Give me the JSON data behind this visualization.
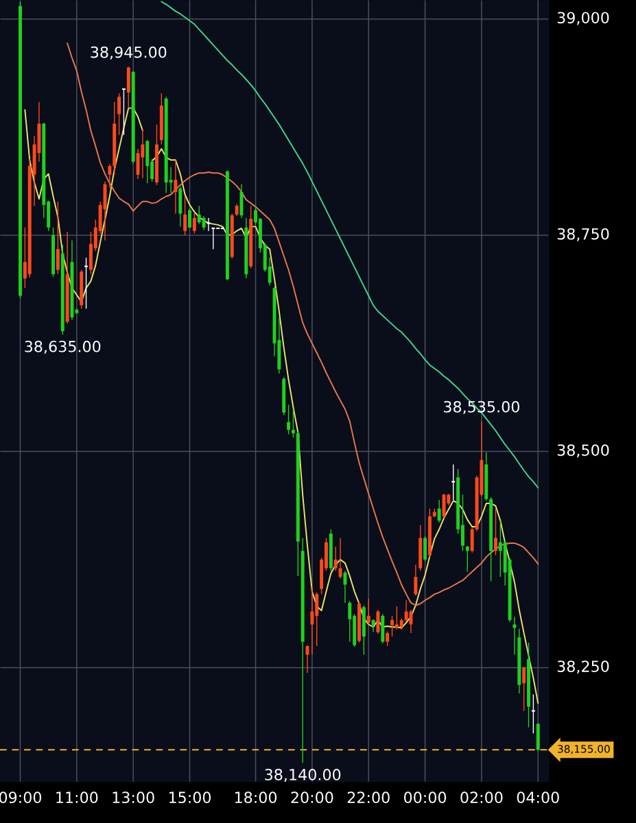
{
  "chart_data": {
    "type": "candlestick",
    "categories": [
      "09:00",
      null,
      null,
      null,
      null,
      null,
      null,
      null,
      null,
      null,
      null,
      null,
      "11:00",
      null,
      null,
      null,
      null,
      null,
      null,
      null,
      null,
      null,
      null,
      null,
      "13:00",
      null,
      null,
      null,
      null,
      null,
      null,
      null,
      null,
      null,
      null,
      null,
      "15:00",
      null,
      null,
      null,
      null,
      null,
      null,
      null,
      null,
      null,
      null,
      null,
      null,
      null,
      "18:00",
      null,
      null,
      null,
      null,
      null,
      null,
      null,
      null,
      null,
      null,
      null,
      "20:00",
      null,
      null,
      null,
      null,
      null,
      null,
      null,
      null,
      null,
      null,
      null,
      "22:00",
      null,
      null,
      null,
      null,
      null,
      null,
      null,
      null,
      null,
      null,
      null,
      "00:00",
      null,
      null,
      null,
      null,
      null,
      null,
      null,
      null,
      null,
      null,
      null,
      "02:00",
      null,
      null,
      null,
      null,
      null,
      null,
      null,
      null,
      null,
      null,
      null,
      "04:00"
    ],
    "ohlc": [
      [
        39015,
        39020,
        38677,
        38680
      ],
      [
        38700,
        38759,
        38689,
        38719
      ],
      [
        38705,
        38838,
        38701,
        38830
      ],
      [
        38820,
        38865,
        38784,
        38855
      ],
      [
        38845,
        38904,
        38835,
        38879
      ],
      [
        38879,
        38880,
        38770,
        38785
      ],
      [
        38789,
        38790,
        38755,
        38759
      ],
      [
        38750,
        38759,
        38702,
        38705
      ],
      [
        38710,
        38789,
        38705,
        38734
      ],
      [
        38729,
        38739,
        38635,
        38639
      ],
      [
        38650,
        38754,
        38648,
        38705
      ],
      [
        38719,
        38744,
        38652,
        38655
      ],
      [
        38664,
        38665,
        38659,
        38660
      ],
      [
        38669,
        38710,
        38665,
        38708
      ],
      [
        38714,
        38724,
        38665,
        38714
      ],
      [
        38710,
        38754,
        38705,
        38740
      ],
      [
        38735,
        38768,
        38732,
        38759
      ],
      [
        38755,
        38789,
        38752,
        38785
      ],
      [
        38780,
        38812,
        38744,
        38809
      ],
      [
        38820,
        38832,
        38805,
        38830
      ],
      [
        38830,
        38904,
        38820,
        38879
      ],
      [
        38890,
        38914,
        38866,
        38910
      ],
      [
        38919,
        38919,
        38866,
        38919
      ],
      [
        38915,
        38945,
        38897,
        38944
      ],
      [
        38939,
        38940,
        38833,
        38835
      ],
      [
        38820,
        38850,
        38815,
        38845
      ],
      [
        38840,
        38873,
        38816,
        38855
      ],
      [
        38859,
        38860,
        38810,
        38830
      ],
      [
        38835,
        38838,
        38812,
        38815
      ],
      [
        38811,
        38878,
        38808,
        38855
      ],
      [
        38860,
        38914,
        38855,
        38900
      ],
      [
        38908,
        38910,
        38799,
        38811
      ],
      [
        38814,
        38829,
        38799,
        38811
      ],
      [
        38800,
        38837,
        38775,
        38814
      ],
      [
        38804,
        38806,
        38760,
        38775
      ],
      [
        38755,
        38795,
        38750,
        38774
      ],
      [
        38779,
        38781,
        38758,
        38759
      ],
      [
        38755,
        38776,
        38752,
        38770
      ],
      [
        38774,
        38784,
        38763,
        38765
      ],
      [
        38770,
        38772,
        38756,
        38759
      ],
      [
        38764,
        38770,
        38755,
        38764
      ],
      [
        38758,
        38759,
        38734,
        38758
      ],
      [
        38758,
        38758,
        38758,
        38758
      ],
      [
        38758,
        38758,
        38758,
        38758
      ],
      [
        38824,
        38825,
        38698,
        38699
      ],
      [
        38725,
        38775,
        38723,
        38773
      ],
      [
        38774,
        38786,
        38772,
        38784
      ],
      [
        38800,
        38809,
        38770,
        38773
      ],
      [
        38759,
        38770,
        38700,
        38705
      ],
      [
        38714,
        38784,
        38712,
        38769
      ],
      [
        38779,
        38784,
        38762,
        38765
      ],
      [
        38769,
        38770,
        38730,
        38735
      ],
      [
        38739,
        38741,
        38708,
        38710
      ],
      [
        38714,
        38724,
        38692,
        38695
      ],
      [
        38689,
        38691,
        38610,
        38625
      ],
      [
        38629,
        38655,
        38590,
        38595
      ],
      [
        38584,
        38586,
        38542,
        38545
      ],
      [
        38534,
        38554,
        38520,
        38525
      ],
      [
        38525,
        38549,
        38516,
        38521
      ],
      [
        38521,
        38523,
        38356,
        38396
      ],
      [
        38385,
        38400,
        38140,
        38280
      ],
      [
        38265,
        38276,
        38244,
        38275
      ],
      [
        38300,
        38344,
        38265,
        38315
      ],
      [
        38310,
        38337,
        38275,
        38335
      ],
      [
        38341,
        38377,
        38335,
        38375
      ],
      [
        38365,
        38400,
        38362,
        38395
      ],
      [
        38405,
        38410,
        38362,
        38365
      ],
      [
        38365,
        38390,
        38362,
        38375
      ],
      [
        38355,
        38400,
        38353,
        38365
      ],
      [
        38360,
        38362,
        38325,
        38346
      ],
      [
        38325,
        38327,
        38280,
        38306
      ],
      [
        38310,
        38312,
        38274,
        38276
      ],
      [
        38281,
        38326,
        38279,
        38324
      ],
      [
        38320,
        38322,
        38265,
        38286
      ],
      [
        38302,
        38330,
        38300,
        38310
      ],
      [
        38305,
        38306,
        38291,
        38299
      ],
      [
        38291,
        38317,
        38289,
        38315
      ],
      [
        38310,
        38312,
        38278,
        38280
      ],
      [
        38280,
        38292,
        38275,
        38290
      ],
      [
        38299,
        38310,
        38286,
        38305
      ],
      [
        38296,
        38321,
        38294,
        38300
      ],
      [
        38297,
        38307,
        38294,
        38305
      ],
      [
        38305,
        38328,
        38303,
        38315
      ],
      [
        38300,
        38317,
        38290,
        38315
      ],
      [
        38335,
        38369,
        38333,
        38355
      ],
      [
        38365,
        38415,
        38362,
        38400
      ],
      [
        38400,
        38402,
        38373,
        38375
      ],
      [
        38380,
        38434,
        38378,
        38425
      ],
      [
        38425,
        38434,
        38424,
        38430
      ],
      [
        38434,
        38444,
        38418,
        38420
      ],
      [
        38425,
        38451,
        38423,
        38450
      ],
      [
        38440,
        38451,
        38438,
        38450
      ],
      [
        38465,
        38485,
        38444,
        38465
      ],
      [
        38470,
        38480,
        38405,
        38410
      ],
      [
        38415,
        38450,
        38385,
        38391
      ],
      [
        38390,
        38391,
        38361,
        38385
      ],
      [
        38385,
        38412,
        38383,
        38410
      ],
      [
        38410,
        38472,
        38408,
        38470
      ],
      [
        38450,
        38535,
        38448,
        38490
      ],
      [
        38485,
        38499,
        38443,
        38445
      ],
      [
        38445,
        38447,
        38350,
        38385
      ],
      [
        38385,
        38434,
        38380,
        38400
      ],
      [
        38395,
        38420,
        38355,
        38385
      ],
      [
        38395,
        38397,
        38345,
        38360
      ],
      [
        38375,
        38377,
        38303,
        38305
      ],
      [
        38300,
        38309,
        38265,
        38296
      ],
      [
        38285,
        38295,
        38220,
        38230
      ],
      [
        38232,
        38251,
        38200,
        38250
      ],
      [
        38260,
        38279,
        38181,
        38205
      ],
      [
        38200,
        38219,
        38174,
        38200
      ],
      [
        38185,
        38186,
        38154,
        38155
      ]
    ],
    "colors": [
      "#1fd11f",
      "#ff4a1c",
      "#ff4a1c",
      "#ff4a1c",
      "#ff4a1c",
      "#1fd11f",
      "#1fd11f",
      "#1fd11f",
      "#ff4a1c",
      "#1fd11f",
      "#ff4a1c",
      "#1fd11f",
      "#1fd11f",
      "#ff4a1c",
      "#ffffff",
      "#ff4a1c",
      "#ff4a1c",
      "#ff4a1c",
      "#ff4a1c",
      "#ff4a1c",
      "#ff4a1c",
      "#ff4a1c",
      "#ffffff",
      "#ff4a1c",
      "#1fd11f",
      "#ff4a1c",
      "#ff4a1c",
      "#1fd11f",
      "#1fd11f",
      "#ff4a1c",
      "#ff4a1c",
      "#1fd11f",
      "#1fd11f",
      "#ff4a1c",
      "#1fd11f",
      "#ff4a1c",
      "#1fd11f",
      "#ff4a1c",
      "#1fd11f",
      "#1fd11f",
      "#ffffff",
      "#ffffff",
      "#ffffff",
      "#ffffff",
      "#1fd11f",
      "#ff4a1c",
      "#ff4a1c",
      "#1fd11f",
      "#1fd11f",
      "#ff4a1c",
      "#1fd11f",
      "#1fd11f",
      "#1fd11f",
      "#1fd11f",
      "#1fd11f",
      "#1fd11f",
      "#1fd11f",
      "#1fd11f",
      "#1fd11f",
      "#1fd11f",
      "#1fd11f",
      "#ff4a1c",
      "#ff4a1c",
      "#ff4a1c",
      "#ff4a1c",
      "#ff4a1c",
      "#1fd11f",
      "#ff4a1c",
      "#ff4a1c",
      "#1fd11f",
      "#1fd11f",
      "#1fd11f",
      "#ff4a1c",
      "#1fd11f",
      "#ff4a1c",
      "#1fd11f",
      "#ff4a1c",
      "#1fd11f",
      "#ff4a1c",
      "#ff4a1c",
      "#ff4a1c",
      "#ff4a1c",
      "#ff4a1c",
      "#ff4a1c",
      "#ff4a1c",
      "#ff4a1c",
      "#1fd11f",
      "#ff4a1c",
      "#ff4a1c",
      "#1fd11f",
      "#ff4a1c",
      "#ff4a1c",
      "#ffffff",
      "#1fd11f",
      "#1fd11f",
      "#1fd11f",
      "#ff4a1c",
      "#ff4a1c",
      "#ff4a1c",
      "#1fd11f",
      "#1fd11f",
      "#ff4a1c",
      "#1fd11f",
      "#1fd11f",
      "#1fd11f",
      "#1fd11f",
      "#1fd11f",
      "#ff4a1c",
      "#1fd11f",
      "#ffffff",
      "#1fd11f"
    ],
    "series": [
      {
        "type": "line",
        "color": "#e9e56a",
        "values": [
          null,
          38895,
          38837,
          38811,
          38792,
          38815,
          38821,
          38795,
          38771,
          38729,
          38707,
          38689,
          38681,
          38673,
          38689,
          38697,
          38715,
          38742,
          38768,
          38795,
          38826,
          38850,
          38874,
          38897,
          38897,
          38887,
          38871,
          null,
          38836,
          38841,
          38850,
          38840,
          38837,
          38837,
          38821,
          38797,
          38785,
          38777,
          38771,
          38767,
          38764,
          38763,
          38762,
          38760,
          38750,
          38751,
          38755,
          38758,
          38747,
          38760,
          38760,
          38747,
          38738,
          38734,
          38700,
          38662,
          38620,
          38583,
          38551,
          38522,
          38450,
          38391,
          38338,
          38321,
          38316,
          38338,
          38359,
          38369,
          38375,
          38371,
          38356,
          38338,
          38324,
          38307,
          38300,
          38297,
          38305,
          38297,
          38298,
          38297,
          38297,
          38296,
          38302,
          38309,
          38322,
          38341,
          38357,
          38379,
          38399,
          38410,
          38423,
          38433,
          38443,
          38440,
          38433,
          38421,
          38413,
          38413,
          38425,
          38440,
          38440,
          38437,
          38420,
          38394,
          38372,
          38349,
          38317,
          38290,
          38264,
          38238,
          38209
        ]
      },
      {
        "type": "line",
        "color": "#e8784c",
        "values": [
          null,
          null,
          null,
          null,
          null,
          null,
          null,
          null,
          null,
          null,
          38972,
          38955,
          38940,
          38916,
          38895,
          38871,
          38853,
          38834,
          38821,
          38810,
          38801,
          38793,
          38789,
          38786,
          38778,
          38784,
          38789,
          38789,
          38787,
          38788,
          38792,
          38795,
          38797,
          38803,
          38808,
          38813,
          38817,
          38820,
          38822,
          38822,
          38823,
          38822,
          38822,
          38820,
          38816,
          38812,
          38807,
          38800,
          38791,
          38787,
          38783,
          38778,
          38773,
          38768,
          38758,
          38742,
          38726,
          38710,
          38691,
          38670,
          38649,
          38636,
          38625,
          38614,
          38603,
          38591,
          38580,
          38569,
          38559,
          38549,
          38535,
          38510,
          38487,
          38469,
          38451,
          38434,
          38417,
          38401,
          38387,
          38373,
          38360,
          38346,
          38335,
          38325,
          38322,
          38324,
          38328,
          38331,
          38335,
          38337,
          38340,
          38342,
          38345,
          38348,
          38351,
          38356,
          38361,
          38366,
          38371,
          38378,
          38383,
          38387,
          38391,
          38393,
          38394,
          38394,
          38392,
          38389,
          38383,
          38377,
          38370
        ]
      },
      {
        "type": "line",
        "color": "#3fd68e",
        "values": [
          null,
          null,
          null,
          null,
          null,
          null,
          null,
          null,
          null,
          null,
          null,
          null,
          null,
          null,
          null,
          null,
          null,
          null,
          null,
          null,
          null,
          null,
          null,
          null,
          null,
          null,
          null,
          null,
          null,
          null,
          39020,
          39017,
          39013,
          39009,
          39006,
          39002,
          38998,
          38994,
          38988,
          38982,
          38976,
          38970,
          38964,
          38958,
          38952,
          38947,
          38941,
          38936,
          38930,
          38924,
          38917,
          38909,
          38902,
          38894,
          38886,
          38878,
          38869,
          38860,
          38851,
          38842,
          38833,
          38823,
          38812,
          38801,
          38790,
          38779,
          38768,
          38757,
          38746,
          38735,
          38724,
          38713,
          38702,
          38691,
          38680,
          38669,
          38662,
          38657,
          38652,
          38647,
          38642,
          38638,
          38632,
          38626,
          38619,
          38613,
          38606,
          38600,
          38596,
          38592,
          38587,
          38583,
          38578,
          38573,
          38567,
          38561,
          38556,
          38550,
          38545,
          38538,
          38531,
          38524,
          38516,
          38508,
          38501,
          38494,
          38486,
          38478,
          38471,
          38465,
          38458
        ]
      }
    ],
    "ylim": [
      38118,
      39022
    ],
    "yticks": [
      {
        "value": 38250,
        "label": "38,250"
      },
      {
        "value": 38500,
        "label": "38,500"
      },
      {
        "value": 38750,
        "label": "38,750"
      },
      {
        "value": 39000,
        "label": "39,000"
      }
    ],
    "grid": true,
    "ref_lines": [
      {
        "axis": "y",
        "value": 38155,
        "label": "38,155.00",
        "color": "#f2b32a",
        "line_style": "dashed"
      }
    ],
    "annotations": [
      {
        "text": "38,945.00",
        "y": 38945
      },
      {
        "text": "38,635.00",
        "y": 38635
      },
      {
        "text": "38,535.00",
        "y": 38535
      },
      {
        "text": "38,140.00",
        "y": 38140
      }
    ]
  }
}
